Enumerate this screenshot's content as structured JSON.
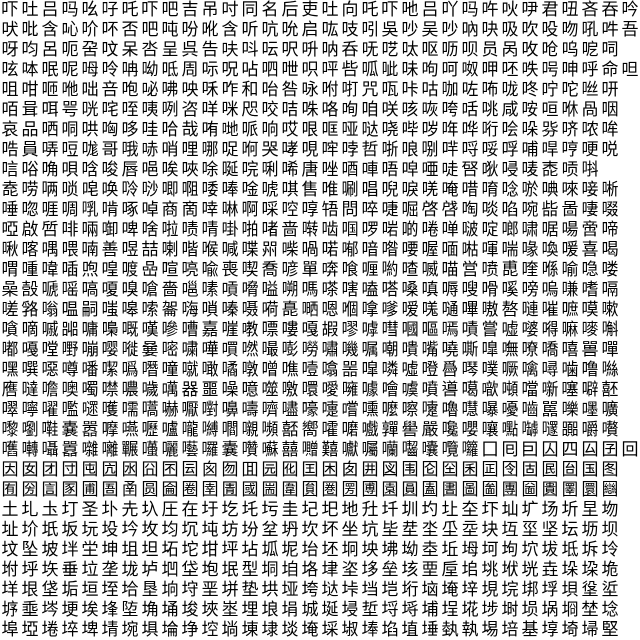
{
  "rows": [
    "吓吐吕吗吆吇吒吓吧吉吊吋同名后吏吐向吒吓吔吕吖吗吘吙吚君吜吝吞吟",
    "吠吡含吣吤吥否吧吨吩吪含听吭吮启吰吱吲吳吵吴吵吶吷吸吹吺吻吼吽吾",
    "呀呁呂呃呄呅呆呇呈呉告呋呌呍呎呏呐呑呒呓呔呕呖呗员呙呚呛呜呝呞",
    "呟呠呡呢呣呤呥呦呧周呩呪呫呬呭呮呯呰呱呲味呴呵呶呷呸呹呺呻呼命呾",
    "咀咁咂咃咄咅咆咇咈咉咊咋和咍咎咏咐咑咒咓咔咕咖咗咘咙咚咛咜咝咞",
    "咟咠咡咢咣咤咥咦咧咨咩咪咫咬咭咮咯咰咱咲咳咴咵咶咷咸咹咺咻咼咽",
    "哀品哂哃哄哅哆哇哈哉哊哋哌响哎哏哐哑哒哓哔哕哖哗哘哙哚哛哜哝哞",
    "哠員哢哣哤哥哦哧哨哩哪哫哬哭哮哯哰哱哲哳哴哵哶哷哸哹哺哻哼哽哾",
    "唁唂唃唄唅唆唇唈唉唊唋唌唍唎唏唐唑唒唓唔唕唖唗唘唙唚唛唜唝唞",
    "唟唠唡唢唣唤唥唦唧唨唩唪唫唬唭售唯唰唱唲唳唴唵唶唷唸唹唺唻唼唽",
    "唾唿啀啁啂啃啄啅商啇啈啉啊啋啌啍啎問啐啑啒啓啔啕啖啗啘啙啚啛啜",
    "啞啟啠啡啢啣啤啥啦啧啨啩啪啫啬啭啮啯啰啱啲啳啴啵啶啷啸啹啺啻啼",
    "啾喀喁喂喃善喅喆喇喈喉喊喋喌喍喎喏喐喑喒喓喔喕喖喗喘喙喚喛喜喝",
    "喟喠喡喢喣喤喥喦喧喨喩喪喫喬喭單喯喰喱喲喳喴喵営喷喸喹喺喻喼喽",
    "喿嗀嗁嗂嗃嗄嗅嗆嗇嗈嗉嗊嗋嗌嗍嗎嗏嗐嗑嗒嗓嗔嗕嗖嗗嗘嗙嗚嗛嗜嗝",
    "嗟嗠嗡嗢嗣嗤嗥嗦嗧嗨嗩嗪嗫嗬嗭嗮嗯嗰嗱嗲嗳嗴嗵嗶嗷嗸嗹嗺嗻嗼嗽",
    "嗿嘀嘁嘂嘃嘄嘅嘆嘇嘈嘉嘊嘋嘌嘍嘎嘏嘐嘑嘒嘓嘔嘕嘖嘗嘘嘙嘚嘛嘜嘝",
    "嘟嘠嘡嘢嘣嘤嘥嘦嘧嘨嘩嘪嘫嘬嘭嘮嘯嘰嘱嘲嘳嘴嘵嘶嘷嘸嘹嘺嘻嘼嘽",
    "嘿噀噁噂噃噄噅噆噇噈噉噊噋噌噍噎噏噐噑噒噓噔噕噖噗噘噙噚噛噜噝",
    "噟噠噡噢噣噤噥噦噧器噩噪噫噬噭噮噯噰噱噲噳噴噵噶噷噸噹噺噻噼噽",
    "噿嚀嚁嚂嚃嚄嚅嚆嚇嚈嚉嚊嚋嚌嚍嚎嚏嚐嚑嚒嚓嚔嚕嚖嚗嚘嚙嚚嚛嚜嚝",
    "嚟嚠嚡嚢嚣嚤嚥嚦嚧嚨嚩嚪嚫嚬嚭嚮嚯嚰嚱嚲嚳嚴嚵嚶嚷嚸嚹嚺嚻嚼嚽",
    "嚿囀囁囂囃囄囅囆囇囈囉囊囋囌囍囎囏囐囑囒囓囔囕囖囗囘囙囚四囜囝回",
    "因囡团団囤囥囦囧囨囩囪囫囬园囮囯困囱囲図围囵囶囷囸囹固囻囼国图",
    "囿圀圁圂圃圄圅圆圇圈圉圊國圌圍圎圏圐圑園圓圔圕圖圗團圙圚圛圜圝",
    "土圠圡圢圣圤圥圦圧在圩圪圫圬圭圮圯地圱圲圳圴圵圶圷圸圹场圻圼圽",
    "址圿坁坂坃坄坅坆均坈坉坊坋坌坍坎坏坐坑坒坓坔坕坖块坘坙坚坛坜坝",
    "坟坠坡坢坣坤坥坦坧坨坩坪坫坬坭坮坯坰坱坲坳坴坵坶坷坸坹坺坻坼坽",
    "坿垀垁垂垃垄垅垆垇垈垉垊型垌垍垎垏垐垑垒垓垔垕垖垗垘垙垚垛垜垝",
    "垟垠垡垢垣垤垥垦垧垨垩垪垫垬垭垮垯垰垱垲垳垴埯垶垷垸垹垺垻垼垽",
    "垿埀埁埂埃埄埅埆埇埈埉埊埋埌埍城埏埐埑埒埓埔埕埖埗埘埙埚埛埜埝",
    "埠埡埢埣埤埥埦埧埨埩埪埫埬埭埮埯埰埱埲埳埴埵埶執埸培基埻埼埽堅"
  ]
}
